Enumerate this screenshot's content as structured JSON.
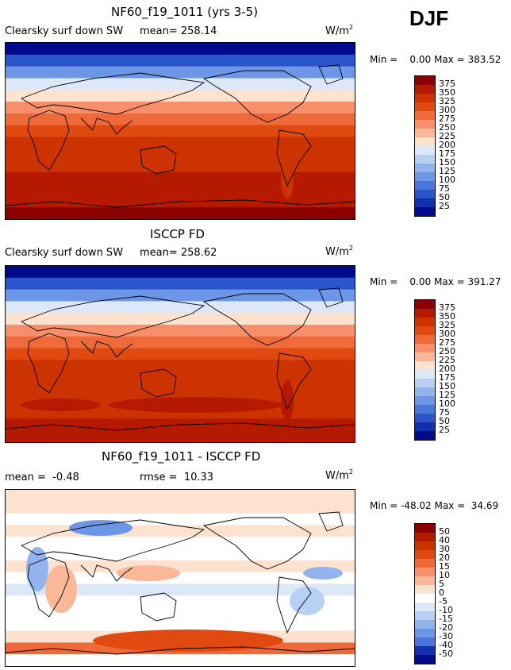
{
  "season": "DJF",
  "units_base": "W/m",
  "units_sup": "2",
  "panels": [
    {
      "title": "NF60_f19_1011 (yrs 3-5)",
      "left_label": "Clearsky surf down SW",
      "stat1": "mean= 258.14",
      "stat2": "",
      "min_text": "Min =    0.00 Max = 383.52",
      "colorbar": {
        "levels": [
          "375",
          "350",
          "325",
          "300",
          "275",
          "250",
          "225",
          "200",
          "175",
          "150",
          "125",
          "100",
          "75",
          "50",
          "25"
        ],
        "colors": [
          "#8b0000",
          "#b51a00",
          "#cc3300",
          "#e04a10",
          "#ee6a3a",
          "#f7906a",
          "#fbb898",
          "#fde2cf",
          "#dce8f8",
          "#b8d0f4",
          "#92b4ee",
          "#6e96e6",
          "#4a76dc",
          "#2a56cc",
          "#1030b0",
          "#000a8a"
        ]
      }
    },
    {
      "title": "ISCCP FD",
      "left_label": "Clearsky surf down SW",
      "stat1": "mean= 258.62",
      "stat2": "",
      "min_text": "Min =    0.00 Max = 391.27",
      "colorbar": {
        "levels": [
          "375",
          "350",
          "325",
          "300",
          "275",
          "250",
          "225",
          "200",
          "175",
          "150",
          "125",
          "100",
          "75",
          "50",
          "25"
        ],
        "colors": [
          "#8b0000",
          "#b51a00",
          "#cc3300",
          "#e04a10",
          "#ee6a3a",
          "#f7906a",
          "#fbb898",
          "#fde2cf",
          "#dce8f8",
          "#b8d0f4",
          "#92b4ee",
          "#6e96e6",
          "#4a76dc",
          "#2a56cc",
          "#1030b0",
          "#000a8a"
        ]
      }
    },
    {
      "title": "NF60_f19_1011 - ISCCP FD",
      "left_label": "",
      "stat1": "mean =  -0.48",
      "stat2": "rmse =  10.33",
      "min_text": "Min = -48.02 Max =  34.69",
      "colorbar": {
        "levels": [
          "50",
          "40",
          "30",
          "20",
          "15",
          "10",
          "5",
          "0",
          "-5",
          "-10",
          "-15",
          "-20",
          "-30",
          "-40",
          "-50"
        ],
        "colors": [
          "#8b0000",
          "#b51a00",
          "#cc3300",
          "#e04a10",
          "#ee6a3a",
          "#f7906a",
          "#fbb898",
          "#fde2cf",
          "#ffffff",
          "#dce8f8",
          "#b8d0f4",
          "#92b4ee",
          "#6e96e6",
          "#4a76dc",
          "#1030b0",
          "#000a8a"
        ]
      }
    }
  ],
  "chart_data": [
    {
      "type": "heatmap",
      "title": "NF60_f19_1011 (yrs 3-5)",
      "variable": "Clearsky surf down SW",
      "mean": 258.14,
      "min": 0.0,
      "max": 383.52,
      "contour_levels": [
        25,
        50,
        75,
        100,
        125,
        150,
        175,
        200,
        225,
        250,
        275,
        300,
        325,
        350,
        375
      ],
      "zonal_profile_north_to_south": [
        10,
        60,
        120,
        180,
        215,
        250,
        285,
        310,
        330,
        340,
        345,
        350,
        355,
        370,
        380
      ]
    },
    {
      "type": "heatmap",
      "title": "ISCCP FD",
      "variable": "Clearsky surf down SW",
      "mean": 258.62,
      "min": 0.0,
      "max": 391.27,
      "contour_levels": [
        25,
        50,
        75,
        100,
        125,
        150,
        175,
        200,
        225,
        250,
        275,
        300,
        325,
        350,
        375
      ],
      "zonal_profile_north_to_south": [
        10,
        60,
        120,
        180,
        215,
        250,
        285,
        305,
        325,
        335,
        340,
        345,
        348,
        350,
        355
      ]
    },
    {
      "type": "heatmap",
      "title": "NF60_f19_1011 - ISCCP FD",
      "mean": -0.48,
      "rmse": 10.33,
      "min": -48.02,
      "max": 34.69,
      "contour_levels": [
        -50,
        -40,
        -30,
        -20,
        -15,
        -10,
        -5,
        0,
        5,
        10,
        15,
        20,
        30,
        40,
        50
      ],
      "zonal_profile_north_to_south": [
        0,
        3,
        -3,
        2,
        -5,
        -3,
        3,
        -2,
        -7,
        -4,
        -3,
        -5,
        0,
        15,
        -2
      ]
    }
  ]
}
